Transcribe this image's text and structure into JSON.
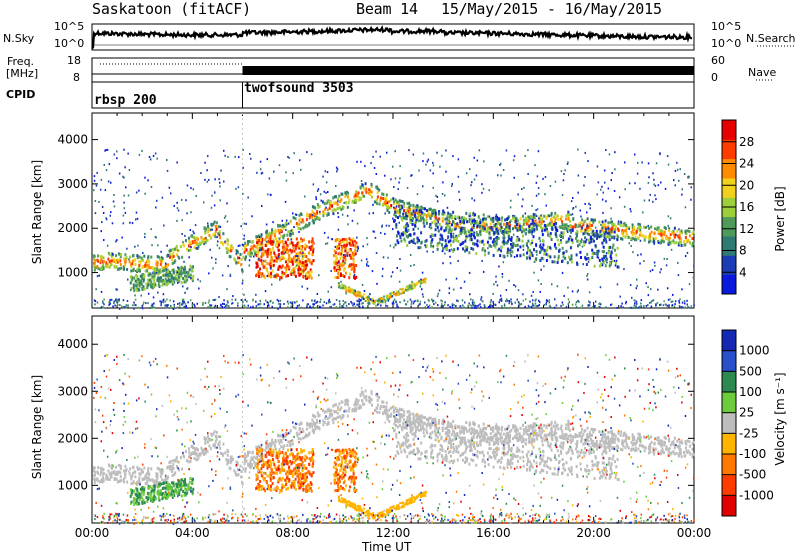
{
  "header": {
    "station": "Saskatoon (fitACF)",
    "beam": "Beam 14",
    "dates": "15/May/2015 - 16/May/2015"
  },
  "top_panels": {
    "nsky": {
      "label": "N.Sky",
      "left_ticks": [
        "10^5",
        "10^0"
      ],
      "right_ticks": [
        "10^5",
        "10^0"
      ],
      "right_label": "N.Search"
    },
    "freq": {
      "label_line1": "Freq.",
      "label_line2": "[MHz]",
      "left_ticks": [
        "18",
        "8"
      ],
      "right_ticks": [
        "60",
        "0"
      ],
      "right_label": "Nave"
    },
    "cpid": {
      "label": "CPID",
      "modes": [
        {
          "name": "rbsp 200",
          "start_hour": 0
        },
        {
          "name": "twofsound 3503",
          "start_hour": 6
        }
      ]
    }
  },
  "chart_data": [
    {
      "type": "heatmap",
      "panel": "power",
      "ylabel": "Slant Range [km]",
      "xlabel": "",
      "ylim": [
        200,
        4600
      ],
      "yticks": [
        1000,
        2000,
        3000,
        4000
      ],
      "xlim": [
        0,
        24
      ],
      "colorbar": {
        "label": "Power [dB]",
        "ticks": [
          4,
          8,
          12,
          16,
          20,
          24,
          28
        ],
        "range": [
          0,
          32
        ],
        "colors": [
          "#0a1adc",
          "#1a3cb4",
          "#2f7a73",
          "#4f9a5a",
          "#9ccf3a",
          "#f0d21e",
          "#ff8c00",
          "#ff3c00",
          "#e60000"
        ]
      }
    },
    {
      "type": "heatmap",
      "panel": "velocity",
      "ylabel": "Slant Range [km]",
      "xlabel": "Time UT",
      "ylim": [
        200,
        4600
      ],
      "yticks": [
        1000,
        2000,
        3000,
        4000
      ],
      "xlim": [
        0,
        24
      ],
      "xticks": [
        "00:00",
        "04:00",
        "08:00",
        "12:00",
        "16:00",
        "20:00",
        "00:00"
      ],
      "colorbar": {
        "label": "Velocity [m s⁻¹]",
        "ticks": [
          "1000",
          "500",
          "100",
          "25",
          "-25",
          "-100",
          "-500",
          "-1000"
        ],
        "colors": [
          "#1428b4",
          "#2850c8",
          "#2c8a50",
          "#6ccc3c",
          "#bdbdbd",
          "#ffb400",
          "#ff7800",
          "#ff3c00",
          "#e00000"
        ]
      }
    }
  ]
}
